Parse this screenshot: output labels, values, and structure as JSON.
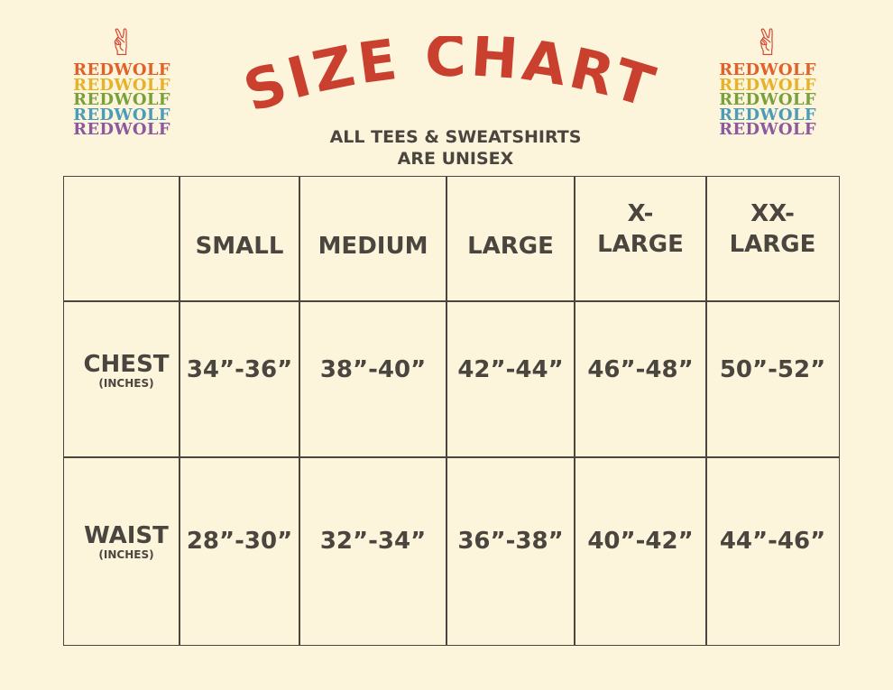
{
  "brand": {
    "name": "REDWOLF",
    "colors": [
      "#e0612a",
      "#e6b22a",
      "#79a03a",
      "#4b9cb8",
      "#8a5a9e"
    ],
    "icon": "peace-hand-icon"
  },
  "title": "SIZE CHART",
  "title_color": "#c9402f",
  "subtitle": [
    "ALL TEES & SWEATSHIRTS",
    "ARE UNISEX"
  ],
  "table": {
    "columns": [
      "",
      "SMALL",
      "MEDIUM",
      "LARGE",
      [
        "X-",
        "LARGE"
      ],
      [
        "XX-",
        "LARGE"
      ]
    ],
    "rows": [
      {
        "label": "CHEST",
        "unit": "(INCHES)",
        "values": [
          "34”-36”",
          "38”-40”",
          "42”-44”",
          "46”-48”",
          "50”-52”"
        ]
      },
      {
        "label": "WAIST",
        "unit": "(INCHES)",
        "values": [
          "28”-30”",
          "32”-34”",
          "36”-38”",
          "40”-42”",
          "44”-46”"
        ]
      }
    ]
  }
}
